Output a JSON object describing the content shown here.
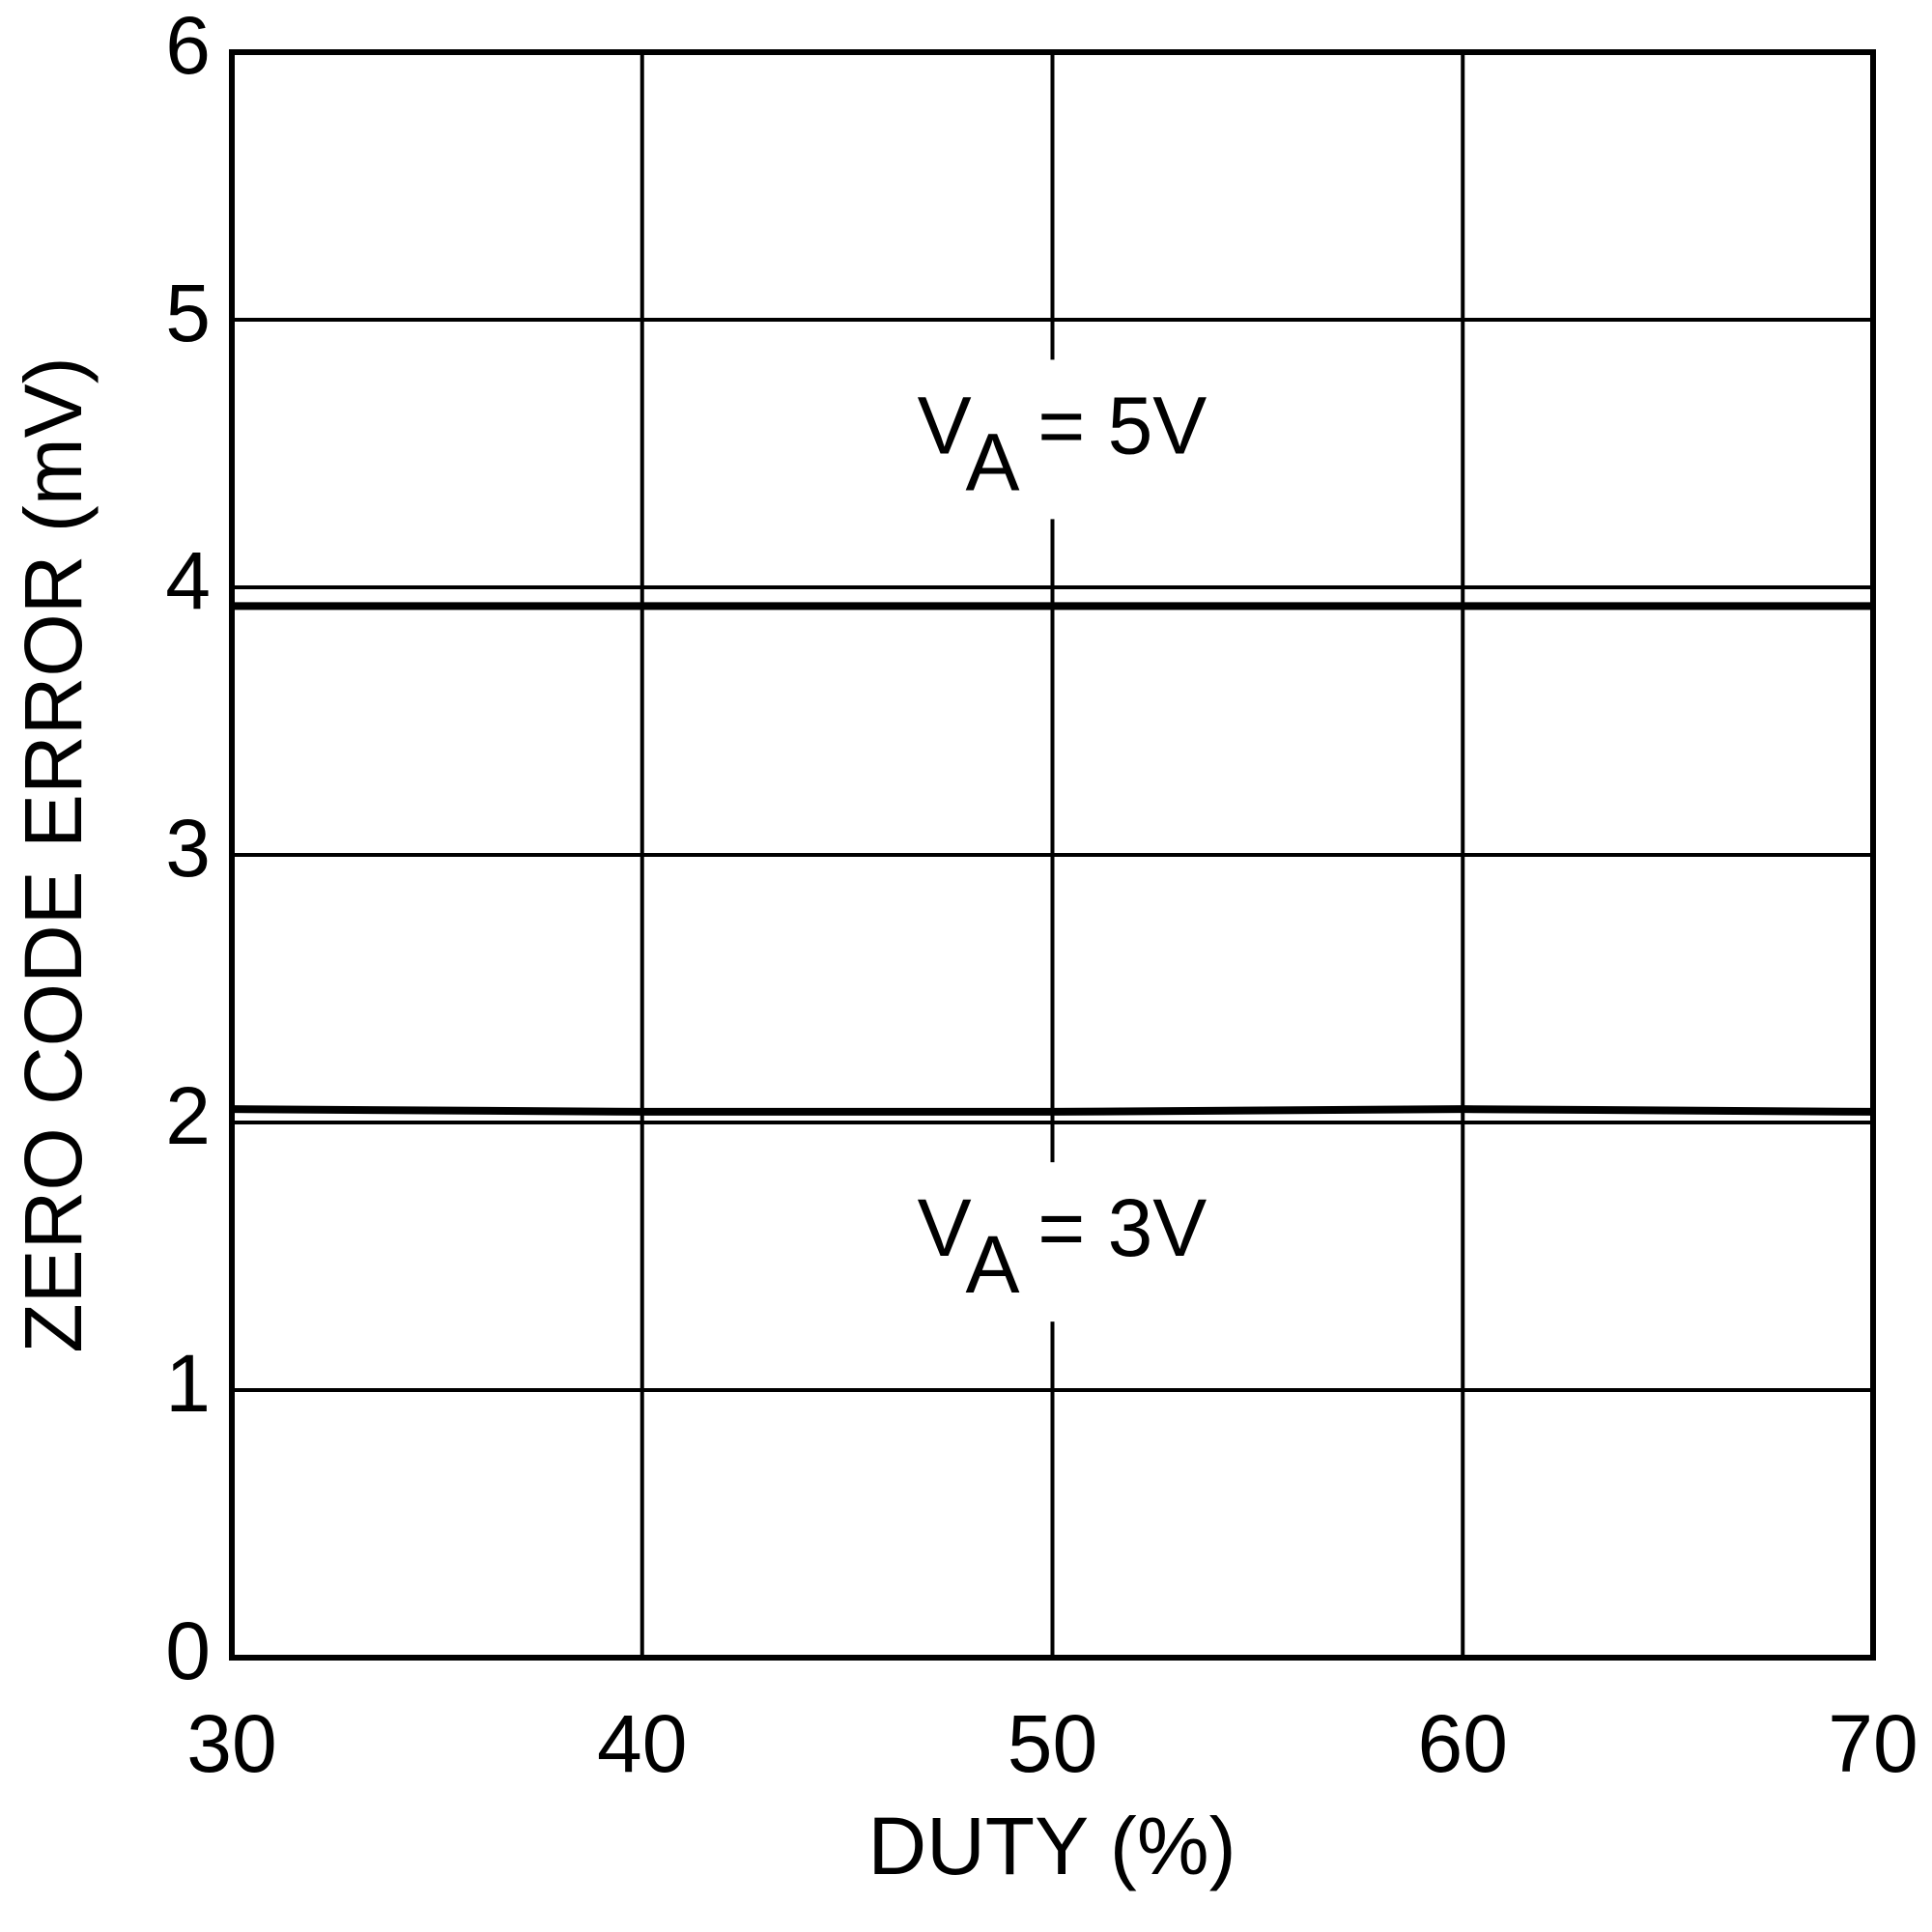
{
  "chart_data": {
    "type": "line",
    "x_label": "DUTY (%)",
    "y_label": "ZERO CODE ERROR (mV)",
    "x": [
      30,
      40,
      50,
      60,
      70
    ],
    "series": [
      {
        "name": [
          "V",
          "A",
          " = 5V"
        ],
        "color": "#000000",
        "values": [
          3.93,
          3.93,
          3.93,
          3.93,
          3.93
        ]
      },
      {
        "name": [
          "V",
          "A",
          " = 3V"
        ],
        "color": "#000000",
        "values": [
          2.05,
          2.04,
          2.04,
          2.05,
          2.04
        ]
      }
    ],
    "xlim": [
      30,
      70
    ],
    "xticks": [
      30,
      40,
      50,
      60,
      70
    ],
    "ylim": [
      0,
      6
    ],
    "yticks": [
      0,
      1,
      2,
      3,
      4,
      5,
      6
    ],
    "grid": true
  }
}
